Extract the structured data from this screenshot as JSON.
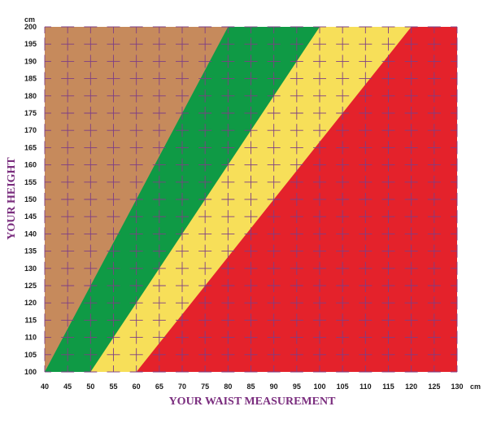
{
  "chart_data": {
    "type": "area",
    "xlabel": "YOUR WAIST MEASUREMENT",
    "ylabel": "YOUR HEIGHT",
    "x_unit": "cm",
    "y_unit": "cm",
    "xlim": [
      40,
      130
    ],
    "ylim": [
      100,
      200
    ],
    "xticks": [
      40,
      45,
      50,
      55,
      60,
      65,
      70,
      75,
      80,
      85,
      90,
      95,
      100,
      105,
      110,
      115,
      120,
      125,
      130
    ],
    "yticks": [
      100,
      105,
      110,
      115,
      120,
      125,
      130,
      135,
      140,
      145,
      150,
      155,
      160,
      165,
      170,
      175,
      180,
      185,
      190,
      195,
      200
    ],
    "grid": true,
    "zones": [
      {
        "color": "#c68a5c",
        "boundary": [
          [
            40,
            100
          ],
          [
            80,
            200
          ]
        ]
      },
      {
        "color": "#0f9a45",
        "boundary": [
          [
            50,
            100
          ],
          [
            100,
            200
          ]
        ]
      },
      {
        "color": "#f7df59",
        "boundary": [
          [
            60,
            100
          ],
          [
            120,
            200
          ]
        ]
      },
      {
        "color": "#e4222b"
      }
    ],
    "grid_color": "#7e3f86"
  }
}
